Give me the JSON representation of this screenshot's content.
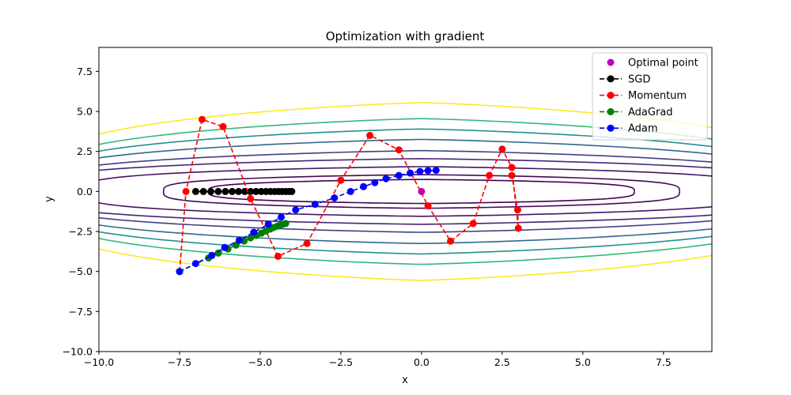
{
  "chart_data": {
    "type": "line",
    "title": "Optimization with gradient",
    "xlabel": "x",
    "ylabel": "y",
    "xlim": [
      -10,
      9
    ],
    "ylim": [
      -10,
      9
    ],
    "xticks": [
      -10.0,
      -7.5,
      -5.0,
      -2.5,
      0.0,
      2.5,
      5.0,
      7.5
    ],
    "yticks": [
      -10.0,
      -7.5,
      -5.0,
      -2.5,
      0.0,
      2.5,
      5.0,
      7.5
    ],
    "xtick_labels": [
      "−10.0",
      "−7.5",
      "−5.0",
      "−2.5",
      "0.0",
      "2.5",
      "5.0",
      "7.5"
    ],
    "ytick_labels": [
      "−10.0",
      "−7.5",
      "−5.0",
      "−2.5",
      "0.0",
      "2.5",
      "5.0",
      "7.5"
    ],
    "grid": false,
    "legend_position": "top-right",
    "contour_levels": [
      {
        "color": "#440154",
        "a": 6.6,
        "b": 0.75
      },
      {
        "color": "#46085c",
        "a": 8.0,
        "b": 1.05
      },
      {
        "color": "#471365",
        "a": 10.5,
        "b": 1.55
      },
      {
        "color": "#482475",
        "a": 12,
        "b": 2.05
      },
      {
        "color": "#433e85",
        "a": 12,
        "b": 2.55
      },
      {
        "color": "#31688e",
        "a": 12,
        "b": 3.25
      },
      {
        "color": "#21918c",
        "a": 12,
        "b": 3.9
      },
      {
        "color": "#35b779",
        "a": 12,
        "b": 4.55
      },
      {
        "color": "#fde725",
        "a": 12,
        "b": 5.55
      }
    ],
    "series": [
      {
        "name": "Optimal point",
        "color": "#bf00bf",
        "line": false,
        "x": [
          0
        ],
        "y": [
          0
        ]
      },
      {
        "name": "SGD",
        "color": "#000000",
        "line": true,
        "x": [
          -7.0,
          -6.76,
          -6.53,
          -6.3,
          -6.08,
          -5.87,
          -5.67,
          -5.48,
          -5.3,
          -5.13,
          -4.97,
          -4.82,
          -4.68,
          -4.55,
          -4.43,
          -4.32,
          -4.21,
          -4.11,
          -4.02
        ],
        "y": [
          0,
          0,
          0,
          0,
          0,
          0,
          0,
          0,
          0,
          0,
          0,
          0,
          0,
          0,
          0,
          0,
          0,
          0,
          0
        ]
      },
      {
        "name": "Momentum",
        "color": "#ff0000",
        "line": true,
        "x": [
          -7.5,
          -7.3,
          -6.8,
          -6.15,
          -5.3,
          -4.45,
          -3.55,
          -2.5,
          -1.6,
          -0.7,
          0.2,
          0.9,
          1.6,
          2.1,
          2.5,
          2.8,
          3.0,
          2.98,
          2.8
        ],
        "y": [
          -5.0,
          0.0,
          4.5,
          4.05,
          -0.45,
          -4.05,
          -3.25,
          0.7,
          3.5,
          2.6,
          -0.9,
          -3.1,
          -2.0,
          1.0,
          2.65,
          1.5,
          -2.3,
          -1.15,
          1.0
        ]
      },
      {
        "name": "AdaGrad",
        "color": "#008000",
        "line": true,
        "x": [
          -7.5,
          -6.6,
          -6.3,
          -6.0,
          -5.75,
          -5.5,
          -5.3,
          -5.12,
          -4.96,
          -4.82,
          -4.69,
          -4.58,
          -4.47,
          -4.38,
          -4.29,
          -4.21
        ],
        "y": [
          -5.0,
          -4.15,
          -3.85,
          -3.6,
          -3.35,
          -3.1,
          -2.9,
          -2.75,
          -2.6,
          -2.47,
          -2.35,
          -2.25,
          -2.17,
          -2.1,
          -2.04,
          -2.0
        ]
      },
      {
        "name": "Adam",
        "color": "#0000ff",
        "line": true,
        "x": [
          -7.5,
          -7.0,
          -6.5,
          -6.1,
          -5.65,
          -5.2,
          -4.75,
          -4.35,
          -3.9,
          -3.3,
          -2.7,
          -2.2,
          -1.8,
          -1.45,
          -1.1,
          -0.7,
          -0.35,
          -0.05,
          0.2,
          0.45
        ],
        "y": [
          -5.0,
          -4.5,
          -4.0,
          -3.5,
          -3.05,
          -2.55,
          -2.05,
          -1.6,
          -1.15,
          -0.8,
          -0.4,
          0.0,
          0.3,
          0.55,
          0.8,
          1.0,
          1.15,
          1.25,
          1.3,
          1.32
        ]
      }
    ]
  }
}
